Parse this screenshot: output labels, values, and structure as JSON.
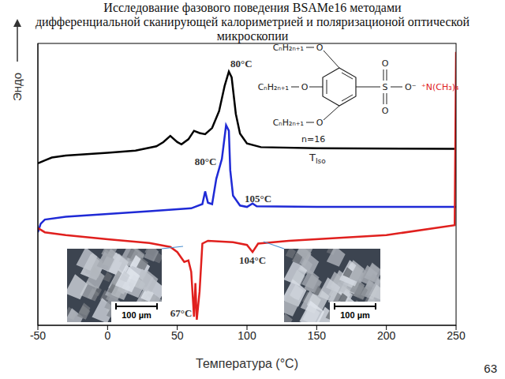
{
  "chart_data": {
    "type": "line",
    "title": [
      "Исследование фазового поведения BSAMe16 методами",
      "дифференциальной сканирующей калориметрией и поляризационой оптической",
      "микроскопии"
    ],
    "x_label": "Температура (°C)",
    "y_label": "Эндо",
    "xlim": [
      -50,
      250
    ],
    "xticks": [
      -50,
      0,
      50,
      100,
      150,
      200,
      250
    ],
    "ylim": [
      0,
      10
    ],
    "tick_labels": "x",
    "grid": false,
    "series": [
      {
        "color": "#000000",
        "x": [
          -50,
          -45,
          -40,
          -30,
          0,
          20,
          35,
          40,
          45,
          50,
          53,
          58,
          62,
          66,
          70,
          75,
          80,
          84,
          87,
          89,
          92,
          95,
          100,
          110,
          150,
          250
        ],
        "values": [
          5.75,
          5.85,
          5.95,
          6.02,
          6.12,
          6.2,
          6.35,
          6.5,
          6.72,
          6.5,
          6.42,
          6.6,
          6.9,
          6.82,
          6.78,
          7.0,
          7.6,
          8.5,
          9.0,
          8.8,
          7.5,
          6.8,
          6.45,
          6.32,
          6.28,
          6.26
        ]
      },
      {
        "color": "#1f2ad6",
        "x": [
          -50,
          -48,
          -45,
          -30,
          0,
          30,
          60,
          68,
          70,
          72,
          75,
          78,
          82,
          85,
          87,
          88,
          90,
          95,
          100,
          104,
          107,
          150,
          250
        ],
        "values": [
          3.3,
          3.6,
          3.75,
          3.85,
          3.95,
          4.05,
          4.15,
          4.3,
          4.75,
          4.35,
          4.3,
          5.2,
          5.9,
          7.1,
          6.9,
          5.5,
          4.6,
          4.25,
          4.2,
          4.32,
          4.22,
          4.2,
          4.2
        ]
      },
      {
        "color": "#e0201e",
        "x": [
          -50,
          -45,
          -30,
          0,
          30,
          45,
          50,
          55,
          58,
          60,
          62,
          63,
          64,
          66,
          68,
          72,
          90,
          100,
          104,
          108,
          130,
          200,
          249,
          250
        ],
        "values": [
          3.45,
          3.3,
          3.2,
          3.05,
          2.92,
          2.78,
          2.6,
          2.25,
          2.3,
          1.9,
          0.3,
          1.5,
          0.2,
          1.2,
          2.9,
          3.0,
          2.95,
          2.85,
          2.6,
          2.9,
          3.0,
          3.2,
          3.55,
          9.7
        ]
      }
    ],
    "annotations": [
      {
        "text": "80°C",
        "x": 88,
        "y": 9.0
      },
      {
        "text": "80°C",
        "x": 85,
        "y": 7.1
      },
      {
        "text": "105°C",
        "x": 104,
        "y": 4.32
      },
      {
        "text": "104°C",
        "x": 104,
        "y": 2.6
      },
      {
        "text": "67°C",
        "x": 64,
        "y": 0.2
      }
    ]
  },
  "structure": {
    "chains": [
      "CₙH₂ₙ₊₁",
      "CₙH₂ₙ₊₁",
      "CₙH₂ₙ₊₁"
    ],
    "ether_oxygens": [
      "O",
      "O",
      "O"
    ],
    "sulfur": "S",
    "sulfonyl_oxygens": [
      "O",
      "O"
    ],
    "anion": "O⁻",
    "cation": "⁺N(CH₃)₄",
    "label": "n=16",
    "transition": {
      "text": "T",
      "subscript": "Iso"
    }
  },
  "micrographs": {
    "scale_bars": [
      "100 µm",
      "100 µm"
    ]
  },
  "page_number": "63"
}
